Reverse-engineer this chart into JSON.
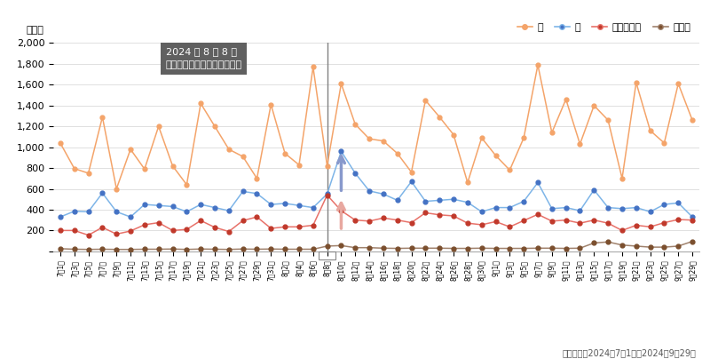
{
  "title_annotation": "2024 年 8 月 8 日\n南海トラフ地震臨時情報発表",
  "ylabel": "（円）",
  "footer": "集計期間：2024年7月1日〜2024年9月29日",
  "ylim": [
    0,
    2000
  ],
  "yticks": [
    0,
    200,
    400,
    600,
    800,
    1000,
    1200,
    1400,
    1600,
    1800,
    2000
  ],
  "color_kome_line": "#F4A46A",
  "color_kome_marker": "#F4A46A",
  "color_water_line": "#7EB5E8",
  "color_water_marker": "#4472C4",
  "color_kome_han_line": "#E8726A",
  "color_kome_han_marker": "#C0392B",
  "color_mochi_line": "#A0826D",
  "color_mochi_marker": "#7B4F2E",
  "background_color": "#ffffff",
  "grid_color": "#e0e0e0",
  "ann_box_color": "#606060",
  "ann_text_color": "#ffffff",
  "vline_index": 19,
  "arrow_blue_color": "#8899CC",
  "arrow_pink_color": "#E8A8A0",
  "dates": [
    "7月1日",
    "7月3日",
    "7月5日",
    "7月7日",
    "7月9日",
    "7月11日",
    "7月13日",
    "7月15日",
    "7月17日",
    "7月19日",
    "7月21日",
    "7月23日",
    "7月25日",
    "7月27日",
    "7月29日",
    "7月31日",
    "8月2日",
    "8月4日",
    "8月6日",
    "8月8日",
    "8月10日",
    "8月12日",
    "8月14日",
    "8月16日",
    "8月18日",
    "8月20日",
    "8月22日",
    "8月24日",
    "8月26日",
    "8月28日",
    "8月30日",
    "9月1日",
    "9月3日",
    "9月5日",
    "9月7日",
    "9月9日",
    "9月11日",
    "9月13日",
    "9月15日",
    "9月17日",
    "9月19日",
    "9月21日",
    "9月23日",
    "9月25日",
    "9月27日",
    "9月29日"
  ],
  "kome": [
    1040,
    795,
    750,
    1290,
    600,
    980,
    790,
    1200,
    820,
    640,
    1420,
    1200,
    980,
    910,
    700,
    1410,
    940,
    830,
    1770,
    820,
    1610,
    1220,
    1080,
    1060,
    940,
    760,
    1450,
    1290,
    1120,
    660,
    1090,
    920,
    780,
    1090,
    1790,
    1140,
    1460,
    1030,
    1400,
    1260,
    700,
    1620,
    1160,
    1040,
    1610,
    1260
  ],
  "water": [
    330,
    385,
    380,
    560,
    380,
    330,
    450,
    440,
    430,
    380,
    450,
    420,
    390,
    575,
    555,
    450,
    460,
    440,
    420,
    550,
    960,
    750,
    580,
    550,
    490,
    670,
    480,
    490,
    500,
    470,
    380,
    420,
    420,
    480,
    660,
    410,
    420,
    390,
    590,
    420,
    410,
    420,
    380,
    450,
    465,
    330
  ],
  "kome_han": [
    200,
    200,
    155,
    230,
    165,
    195,
    255,
    275,
    200,
    210,
    295,
    230,
    190,
    295,
    330,
    220,
    235,
    235,
    250,
    540,
    390,
    300,
    290,
    320,
    300,
    275,
    370,
    350,
    340,
    270,
    255,
    285,
    235,
    295,
    355,
    290,
    300,
    270,
    300,
    270,
    200,
    250,
    235,
    275,
    305,
    300
  ],
  "mochi": [
    25,
    20,
    18,
    20,
    18,
    18,
    20,
    20,
    22,
    18,
    22,
    20,
    18,
    22,
    20,
    22,
    20,
    20,
    20,
    50,
    55,
    35,
    35,
    30,
    28,
    30,
    30,
    30,
    28,
    28,
    30,
    28,
    28,
    28,
    30,
    30,
    28,
    30,
    80,
    90,
    60,
    50,
    40,
    40,
    50,
    95
  ]
}
